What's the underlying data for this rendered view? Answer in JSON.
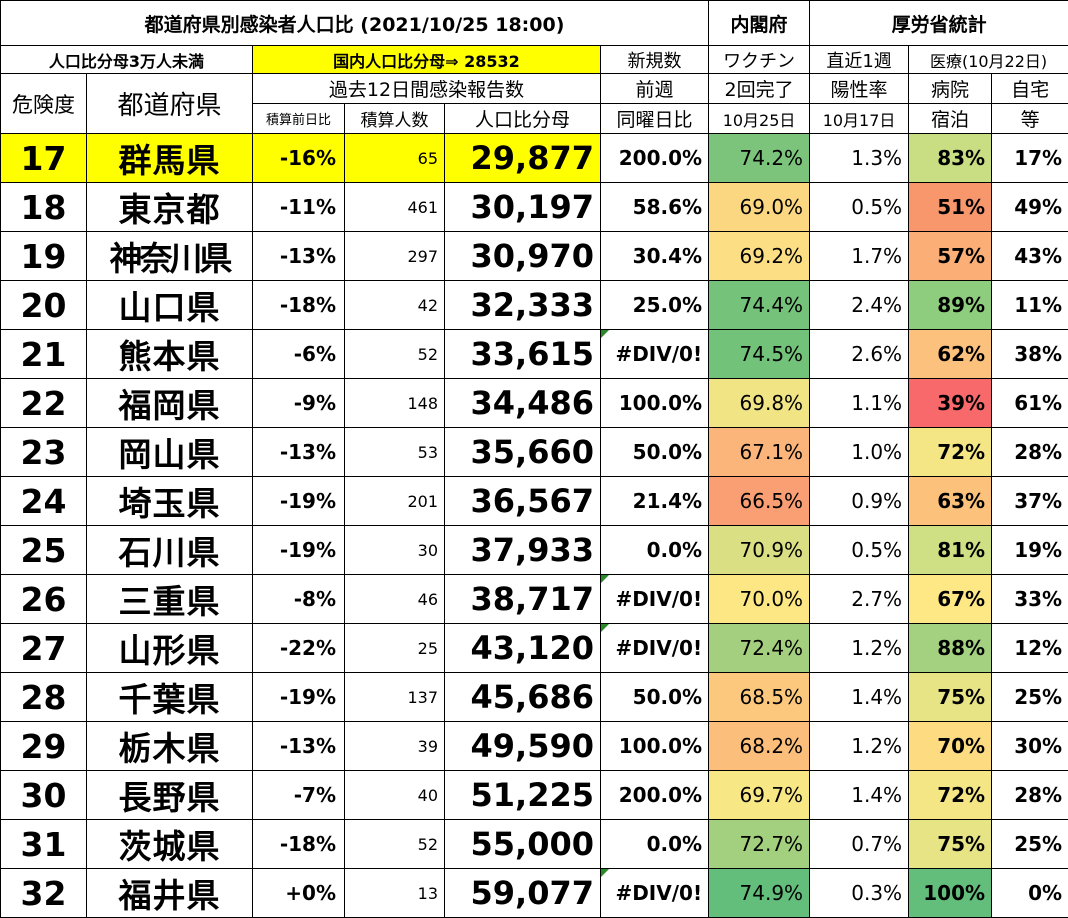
{
  "header": {
    "title": "都道府県別感染者人口比 (2021/10/25 18:00)",
    "cabinet": "内閣府",
    "mhlw": "厚労省統計",
    "subset": "人口比分母3万人未満",
    "national": "国内人口比分母⇒ 28532",
    "new_cases": "新規数",
    "vaccine": "ワクチン",
    "recent_week": "直近1週",
    "medical": "医療(10月22日)",
    "risk": "危険度",
    "prefecture": "都道府県",
    "past12": "過去12日間感染報告数",
    "prev_week": "前週",
    "two_doses": "2回完了",
    "positivity": "陽性率",
    "hospital": "病院",
    "home1": "自宅",
    "prev_ratio": "積算前日比",
    "total": "積算人数",
    "pop_ratio": "人口比分母",
    "same_day": "同曜日比",
    "oct25": "10月25日",
    "oct17": "10月17日",
    "hotel": "宿泊",
    "home2": "等"
  },
  "rows": [
    {
      "rank": "17",
      "pref": "群馬県",
      "cmp": "-16%",
      "count": "65",
      "ratio": "29,877",
      "wk": "200.0%",
      "vac": "74.2%",
      "pos": "1.3%",
      "hosp": "83%",
      "home": "17%"
    },
    {
      "rank": "18",
      "pref": "東京都",
      "cmp": "-11%",
      "count": "461",
      "ratio": "30,197",
      "wk": "58.6%",
      "vac": "69.0%",
      "pos": "0.5%",
      "hosp": "51%",
      "home": "49%"
    },
    {
      "rank": "19",
      "pref": "神奈川県",
      "cmp": "-13%",
      "count": "297",
      "ratio": "30,970",
      "wk": "30.4%",
      "vac": "69.2%",
      "pos": "1.7%",
      "hosp": "57%",
      "home": "43%"
    },
    {
      "rank": "20",
      "pref": "山口県",
      "cmp": "-18%",
      "count": "42",
      "ratio": "32,333",
      "wk": "25.0%",
      "vac": "74.4%",
      "pos": "2.4%",
      "hosp": "89%",
      "home": "11%"
    },
    {
      "rank": "21",
      "pref": "熊本県",
      "cmp": "-6%",
      "count": "52",
      "ratio": "33,615",
      "wk": "#DIV/0!",
      "vac": "74.5%",
      "pos": "2.6%",
      "hosp": "62%",
      "home": "38%"
    },
    {
      "rank": "22",
      "pref": "福岡県",
      "cmp": "-9%",
      "count": "148",
      "ratio": "34,486",
      "wk": "100.0%",
      "vac": "69.8%",
      "pos": "1.1%",
      "hosp": "39%",
      "home": "61%"
    },
    {
      "rank": "23",
      "pref": "岡山県",
      "cmp": "-13%",
      "count": "53",
      "ratio": "35,660",
      "wk": "50.0%",
      "vac": "67.1%",
      "pos": "1.0%",
      "hosp": "72%",
      "home": "28%"
    },
    {
      "rank": "24",
      "pref": "埼玉県",
      "cmp": "-19%",
      "count": "201",
      "ratio": "36,567",
      "wk": "21.4%",
      "vac": "66.5%",
      "pos": "0.9%",
      "hosp": "63%",
      "home": "37%"
    },
    {
      "rank": "25",
      "pref": "石川県",
      "cmp": "-19%",
      "count": "30",
      "ratio": "37,933",
      "wk": "0.0%",
      "vac": "70.9%",
      "pos": "0.5%",
      "hosp": "81%",
      "home": "19%"
    },
    {
      "rank": "26",
      "pref": "三重県",
      "cmp": "-8%",
      "count": "46",
      "ratio": "38,717",
      "wk": "#DIV/0!",
      "vac": "70.0%",
      "pos": "2.7%",
      "hosp": "67%",
      "home": "33%"
    },
    {
      "rank": "27",
      "pref": "山形県",
      "cmp": "-22%",
      "count": "25",
      "ratio": "43,120",
      "wk": "#DIV/0!",
      "vac": "72.4%",
      "pos": "1.2%",
      "hosp": "88%",
      "home": "12%"
    },
    {
      "rank": "28",
      "pref": "千葉県",
      "cmp": "-19%",
      "count": "137",
      "ratio": "45,686",
      "wk": "50.0%",
      "vac": "68.5%",
      "pos": "1.4%",
      "hosp": "75%",
      "home": "25%"
    },
    {
      "rank": "29",
      "pref": "栃木県",
      "cmp": "-13%",
      "count": "39",
      "ratio": "49,590",
      "wk": "100.0%",
      "vac": "68.2%",
      "pos": "1.2%",
      "hosp": "70%",
      "home": "30%"
    },
    {
      "rank": "30",
      "pref": "長野県",
      "cmp": "-7%",
      "count": "40",
      "ratio": "51,225",
      "wk": "200.0%",
      "vac": "69.7%",
      "pos": "1.4%",
      "hosp": "72%",
      "home": "28%"
    },
    {
      "rank": "31",
      "pref": "茨城県",
      "cmp": "-18%",
      "count": "52",
      "ratio": "55,000",
      "wk": "0.0%",
      "vac": "72.7%",
      "pos": "0.7%",
      "hosp": "75%",
      "home": "25%"
    },
    {
      "rank": "32",
      "pref": "福井県",
      "cmp": "+0%",
      "count": "13",
      "ratio": "59,077",
      "wk": "#DIV/0!",
      "vac": "74.9%",
      "pos": "0.3%",
      "hosp": "100%",
      "home": "0%"
    }
  ],
  "colors": {
    "highlight": "#ffff00",
    "vac": [
      "#7cc47b",
      "#fbd782",
      "#fcde84",
      "#75c27a",
      "#73c27a",
      "#f0e485",
      "#fbb479",
      "#fa9f73",
      "#d9df82",
      "#fde784",
      "#a3cf7e",
      "#fcc87d",
      "#fcbe7b",
      "#f7e785",
      "#a2d07e",
      "#63be7b"
    ],
    "hosp": [
      "#c9dd83",
      "#f8966c",
      "#fbae76",
      "#8fcd7e",
      "#fcc17c",
      "#f8696b",
      "#f5e685",
      "#fcc27c",
      "#cfdf83",
      "#fee886",
      "#a3d17f",
      "#e6e484",
      "#fcdb81",
      "#f5e685",
      "#e6e484",
      "#63be7b"
    ]
  }
}
